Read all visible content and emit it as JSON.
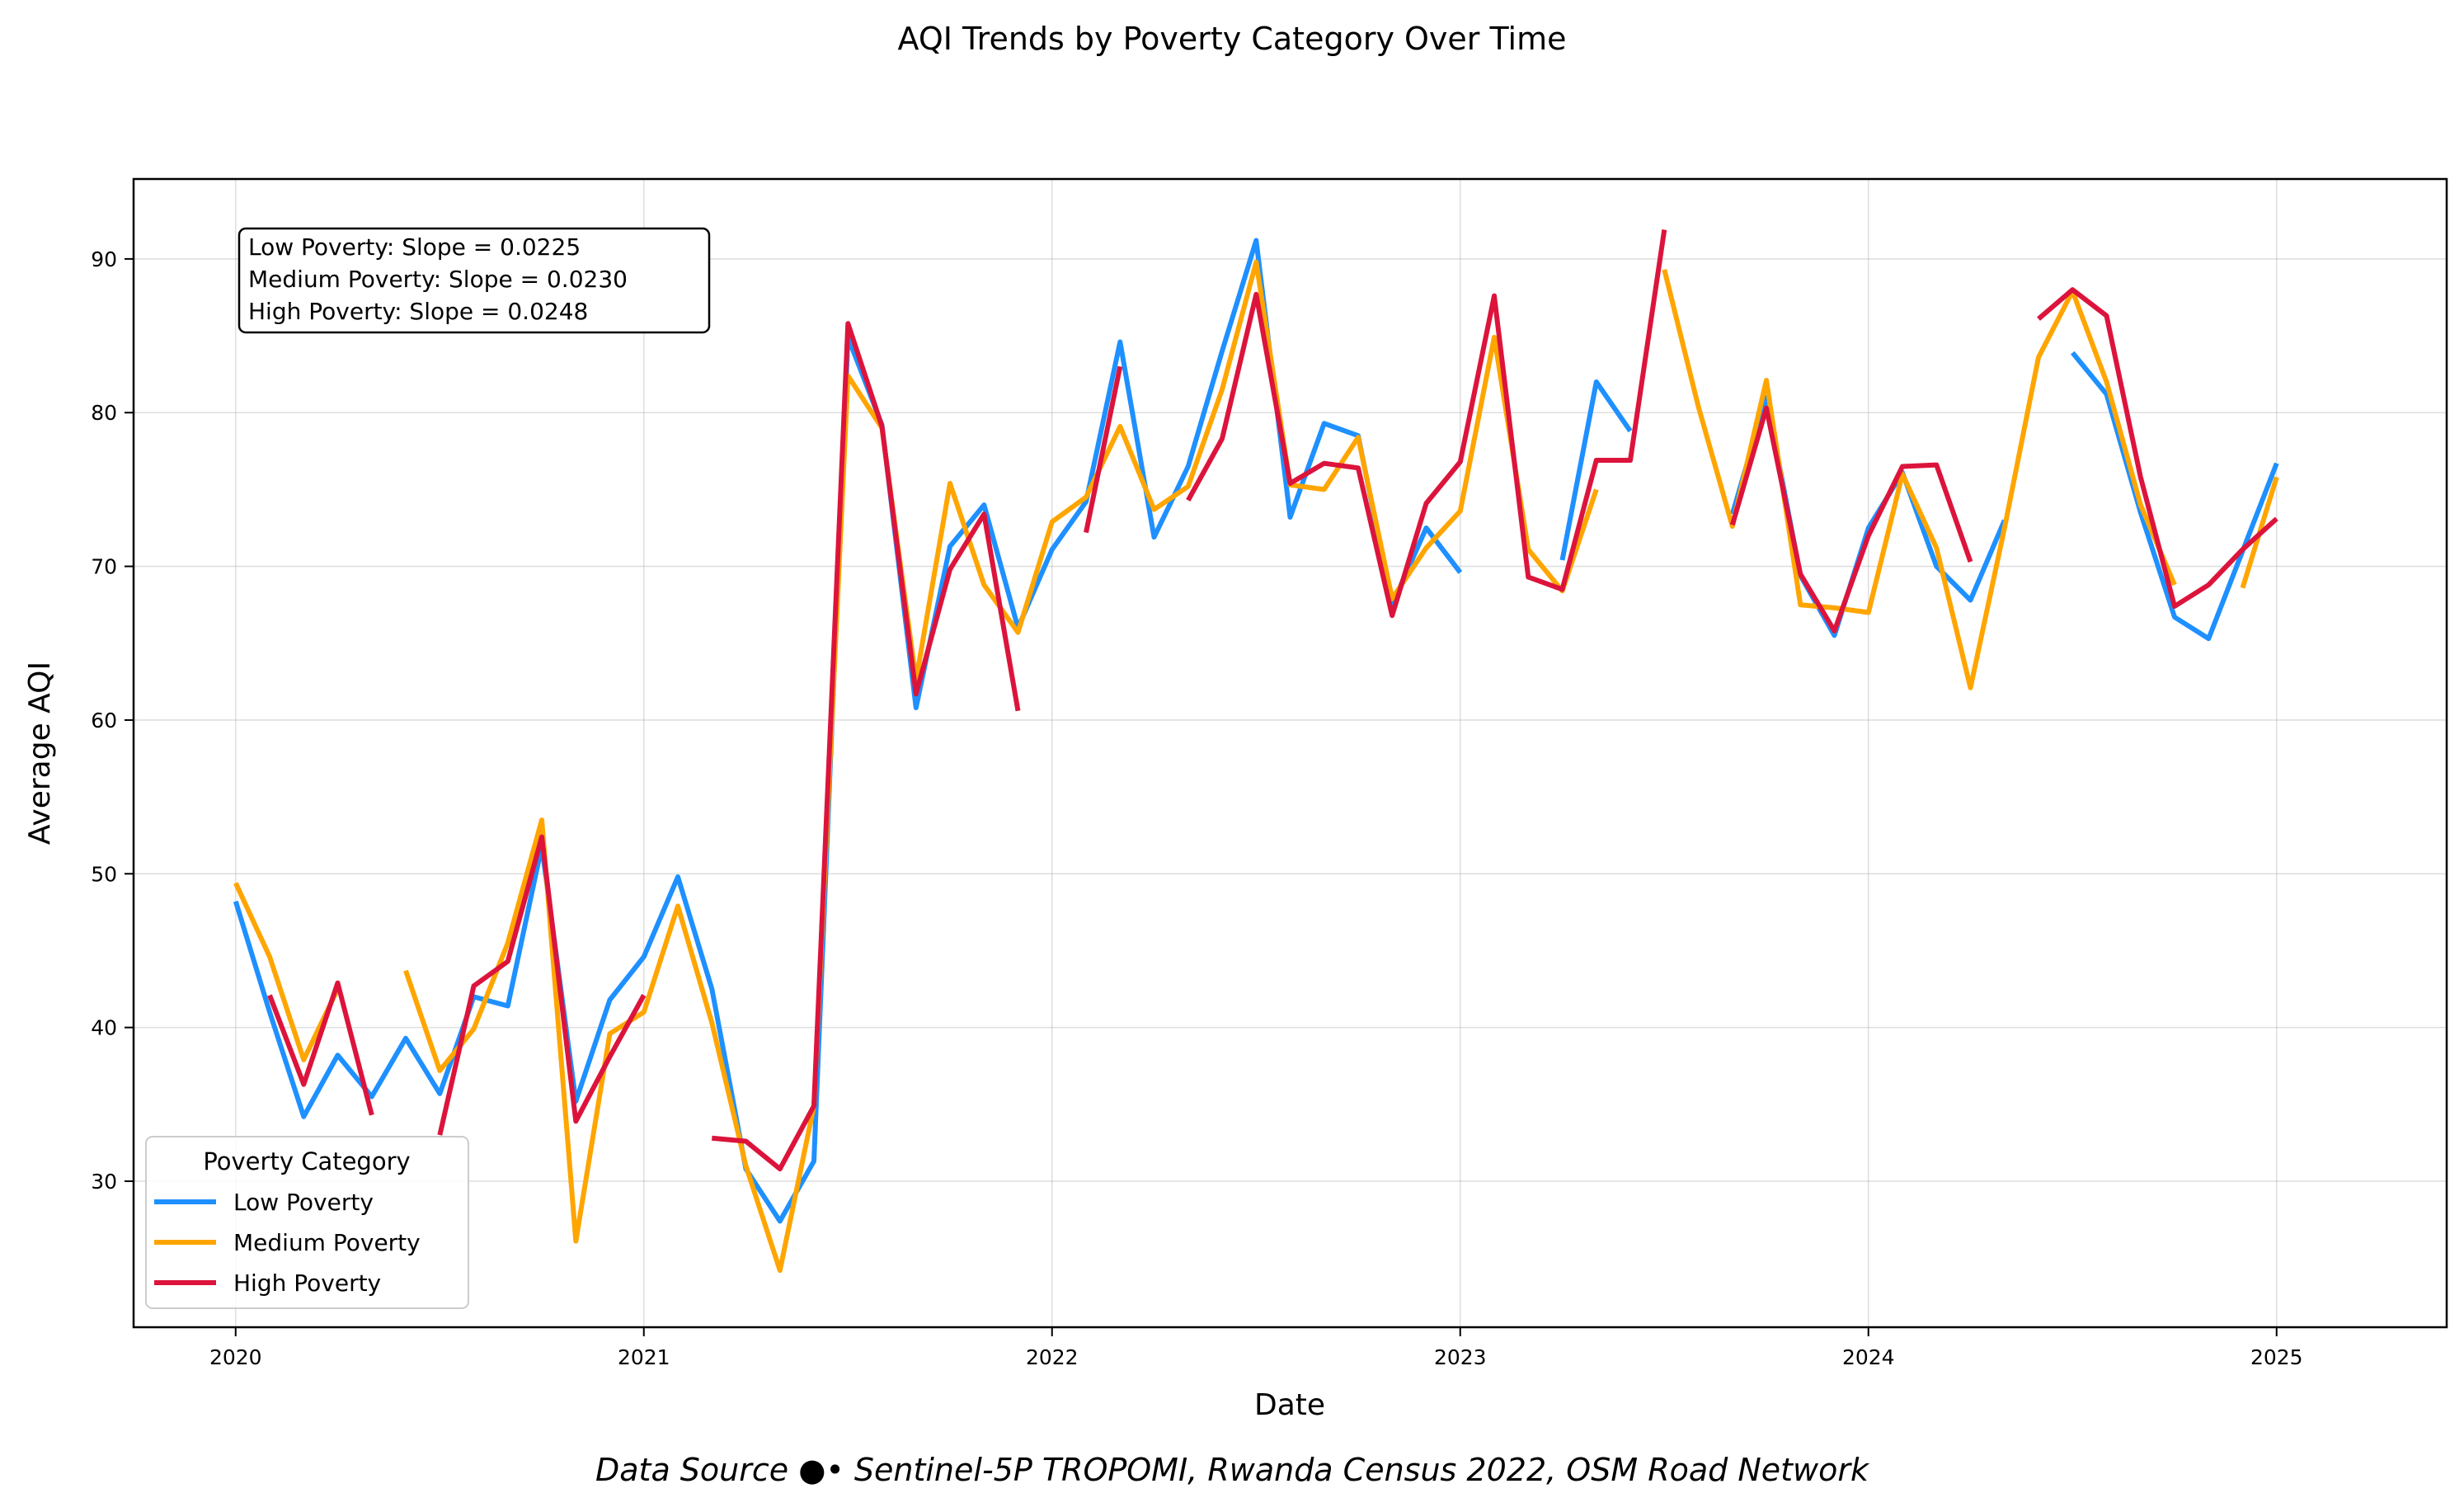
{
  "chart_data": {
    "type": "line",
    "title": "AQI Trends by Poverty Category Over Time",
    "xlabel": "Date",
    "ylabel": "Average AQI",
    "x_range": [
      "2019-10",
      "2025-06"
    ],
    "ylim": [
      20.5,
      95.2
    ],
    "x_ticks": [
      "2020",
      "2021",
      "2022",
      "2023",
      "2024",
      "2025"
    ],
    "y_ticks": [
      30,
      40,
      50,
      60,
      70,
      80,
      90
    ],
    "grid": true,
    "legend": {
      "title": "Poverty Category",
      "placement": "lower-left",
      "entries": [
        "Low Poverty",
        "Medium Poverty",
        "High Poverty"
      ]
    },
    "annotation": [
      "Low Poverty: Slope = 0.0225",
      "Medium Poverty: Slope = 0.0230",
      "High Poverty: Slope = 0.0248"
    ],
    "footnote": "Data Source ●• Sentinel-5P TROPOMI, Rwanda Census 2022, OSM Road Network",
    "x": [
      "2020-01",
      "2020-02",
      "2020-03",
      "2020-04",
      "2020-05",
      "2020-06",
      "2020-07",
      "2020-08",
      "2020-09",
      "2020-10",
      "2020-11",
      "2020-12",
      "2021-01",
      "2021-02",
      "2021-03",
      "2021-04",
      "2021-05",
      "2021-06",
      "2021-07",
      "2021-08",
      "2021-09",
      "2021-10",
      "2021-11",
      "2021-12",
      "2022-01",
      "2022-02",
      "2022-03",
      "2022-04",
      "2022-05",
      "2022-06",
      "2022-07",
      "2022-08",
      "2022-09",
      "2022-10",
      "2022-11",
      "2022-12",
      "2023-01",
      "2023-02",
      "2023-03",
      "2023-04",
      "2023-05",
      "2023-06",
      "2023-07",
      "2023-08",
      "2023-09",
      "2023-10",
      "2023-11",
      "2023-12",
      "2024-01",
      "2024-02",
      "2024-03",
      "2024-04",
      "2024-05",
      "2024-06",
      "2024-07",
      "2024-08",
      "2024-09",
      "2024-10",
      "2024-11",
      "2024-12",
      "2025-01"
    ],
    "series": [
      {
        "name": "Low Poverty",
        "color": "#1e90ff",
        "values": [
          48.2,
          41.0,
          34.2,
          38.2,
          35.5,
          39.3,
          35.7,
          42.0,
          41.4,
          51.8,
          35.2,
          41.8,
          44.6,
          49.8,
          42.5,
          30.8,
          27.4,
          31.3,
          84.9,
          79.2,
          60.8,
          71.3,
          74.0,
          66.0,
          71.1,
          74.2,
          84.6,
          71.9,
          76.5,
          84.0,
          91.2,
          73.2,
          79.3,
          78.5,
          67.5,
          72.5,
          69.6,
          null,
          null,
          70.4,
          82.0,
          78.8,
          null,
          null,
          73.4,
          81.0,
          69.4,
          65.5,
          72.5,
          76.1,
          70.0,
          67.8,
          73.0,
          null,
          83.9,
          81.2,
          73.5,
          66.7,
          65.3,
          71.0,
          76.7
        ]
      },
      {
        "name": "Medium Poverty",
        "color": "#ffa500",
        "values": [
          49.4,
          44.6,
          37.9,
          42.5,
          null,
          43.7,
          37.2,
          39.9,
          45.5,
          53.5,
          26.1,
          39.6,
          41.0,
          47.9,
          40.3,
          31.0,
          24.2,
          34.9,
          82.4,
          79.0,
          62.6,
          75.4,
          68.8,
          65.7,
          72.9,
          74.5,
          79.1,
          73.7,
          75.2,
          81.5,
          89.8,
          75.3,
          75.0,
          78.4,
          67.9,
          71.2,
          73.6,
          84.9,
          71.1,
          68.4,
          75.0,
          null,
          89.3,
          80.4,
          72.6,
          82.1,
          67.5,
          67.3,
          67.0,
          76.0,
          71.2,
          62.1,
          72.5,
          83.6,
          87.9,
          82.0,
          74.0,
          68.8,
          null,
          68.6,
          75.8
        ]
      },
      {
        "name": "High Poverty",
        "color": "#dc143c",
        "values": [
          null,
          42.1,
          36.3,
          42.9,
          34.3,
          null,
          33.0,
          42.7,
          44.3,
          52.4,
          33.9,
          38.1,
          42.1,
          null,
          32.8,
          32.6,
          30.8,
          34.9,
          85.8,
          79.1,
          61.7,
          69.8,
          73.4,
          60.6,
          null,
          72.2,
          83.0,
          null,
          74.3,
          78.3,
          87.7,
          75.4,
          76.7,
          76.4,
          66.8,
          74.1,
          76.8,
          87.6,
          69.3,
          68.5,
          76.9,
          76.9,
          91.9,
          null,
          72.7,
          80.3,
          69.5,
          65.8,
          72.0,
          76.5,
          76.6,
          70.3,
          null,
          86.1,
          88.0,
          86.3,
          75.8,
          67.4,
          68.8,
          71.1,
          73.1
        ]
      }
    ]
  }
}
